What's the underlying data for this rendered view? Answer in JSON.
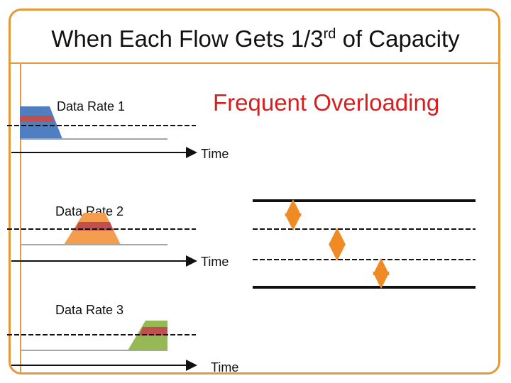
{
  "slide": {
    "title_prefix": "When Each Flow Gets 1/3",
    "title_superscript": "rd",
    "title_suffix": " of Capacity",
    "headline": "Frequent Overloading"
  },
  "flows": [
    {
      "label": "Data Rate 1",
      "time_label": "Time"
    },
    {
      "label": "Data Rate 2",
      "time_label": "Time"
    },
    {
      "label": "Data Rate 3",
      "time_label": "Time"
    }
  ],
  "colors": {
    "accent_border": "#e39a3b",
    "headline_red": "#d81f1f",
    "flow1_blue": "#4f7fc0",
    "flow2_orange": "#f59d4f",
    "flow3_green": "#96b955",
    "overlap_red": "#c0504d",
    "arrow_orange": "#f08a24"
  }
}
